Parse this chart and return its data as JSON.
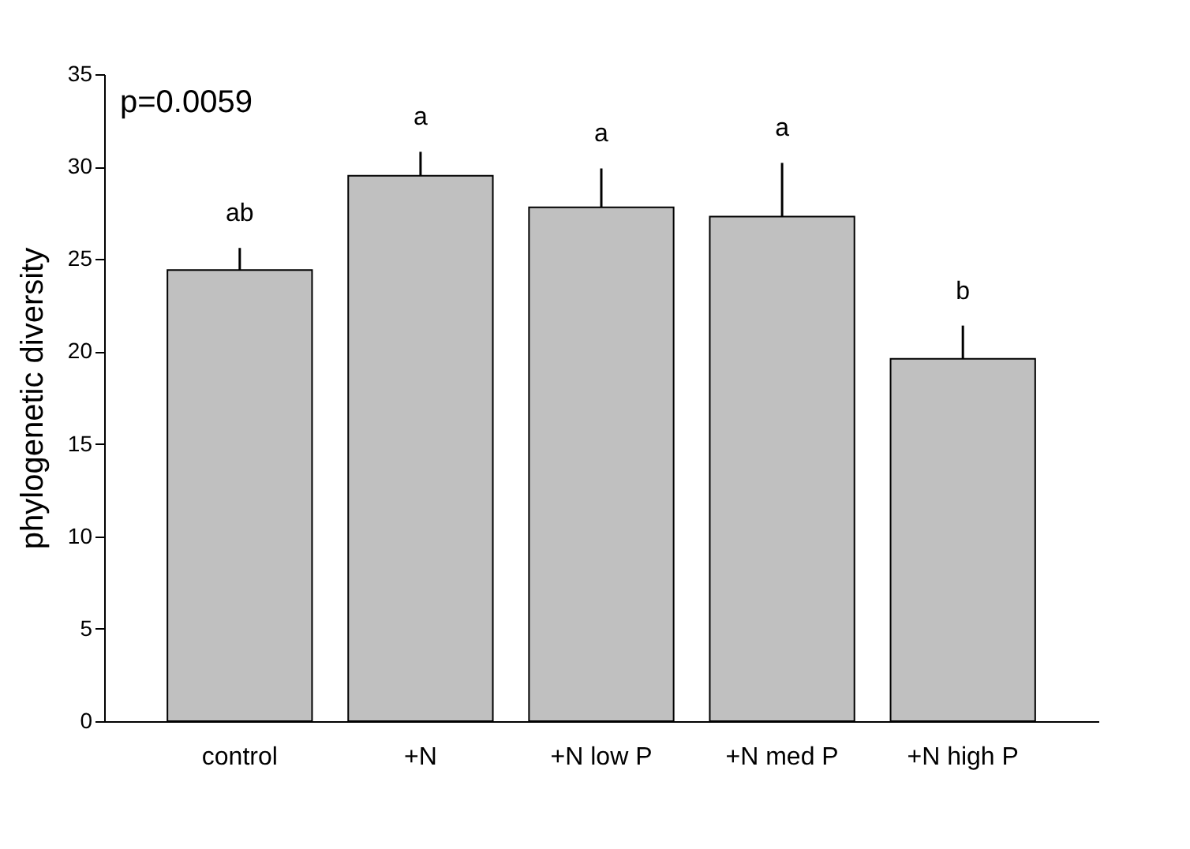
{
  "chart_data": {
    "type": "bar",
    "ylabel": "phylogenetic diversity",
    "categories": [
      "control",
      "+N",
      "+N low P",
      "+N med P",
      "+N high P"
    ],
    "values": [
      24.4,
      29.5,
      27.8,
      27.3,
      19.6
    ],
    "errors": [
      [
        24.4,
        25.6
      ],
      [
        29.5,
        30.8
      ],
      [
        27.8,
        29.9
      ],
      [
        27.3,
        30.2
      ],
      [
        19.6,
        21.4
      ]
    ],
    "color": "#c0c0c0",
    "ylim": [
      0,
      35
    ],
    "yticks": [
      0,
      5,
      10,
      15,
      20,
      25,
      30,
      35
    ],
    "grid": false,
    "annotations": [
      "p=0.0059",
      "ab",
      "a",
      "a",
      "a",
      "b"
    ]
  }
}
